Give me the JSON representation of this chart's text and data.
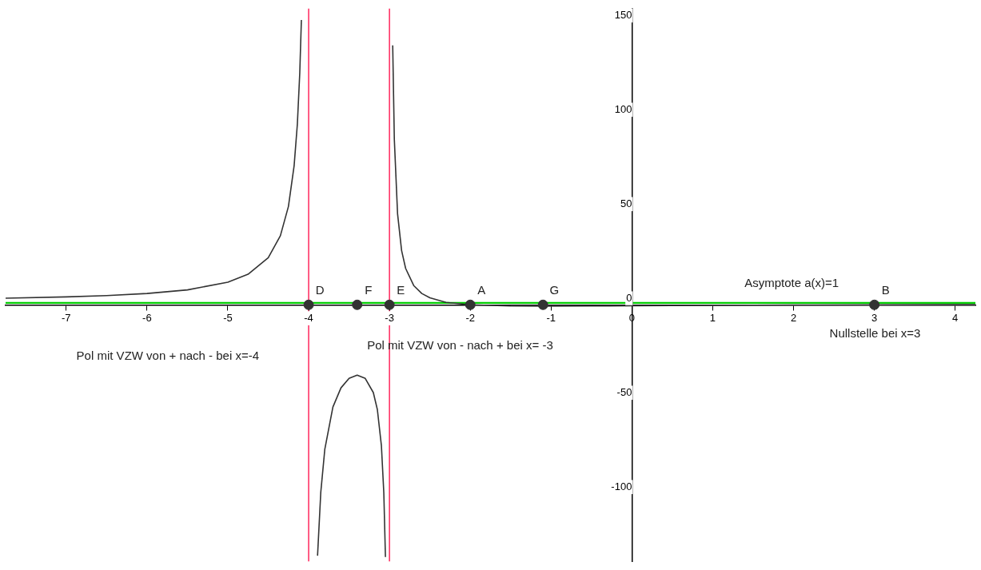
{
  "chart_data": {
    "type": "line",
    "xlim": [
      -7.75,
      4.25
    ],
    "ylim": [
      -136,
      157
    ],
    "xticks": [
      -7,
      -6,
      -5,
      -4,
      -3,
      -2,
      -1,
      0,
      1,
      2,
      3,
      4
    ],
    "yticks": [
      -100,
      -50,
      0,
      50,
      100,
      150
    ],
    "grid": false,
    "series": [
      {
        "color": "#333333",
        "marker": "none",
        "line_style": "solid",
        "x": [
          -7.75,
          -7,
          -6.5,
          -6,
          -5.5,
          -5,
          -4.75,
          -4.5,
          -4.35,
          -4.25,
          -4.18,
          -4.14,
          -4.11,
          -4.09,
          -4,
          -3.89,
          -3.85,
          -3.8,
          -3.7,
          -3.6,
          -3.5,
          -3.4,
          -3.3,
          -3.2,
          -3.15,
          -3.1,
          -3.07,
          -3.05,
          -3,
          -2.96,
          -2.94,
          -2.9,
          -2.85,
          -2.8,
          -2.7,
          -2.6,
          -2.5,
          -2.3,
          -2,
          -1.5,
          -1.1,
          -0.5,
          0,
          1,
          2,
          3,
          4,
          4.25
        ],
        "values": [
          3.5,
          4.2,
          4.9,
          6,
          7.9,
          12,
          16.2,
          25,
          36.6,
          52.2,
          73.7,
          95.7,
          122.9,
          151,
          null,
          -133,
          -99.4,
          -76.5,
          -54.2,
          -44,
          -39,
          -37.3,
          -39,
          -46.5,
          -55.5,
          -74.6,
          -99.8,
          -133.7,
          null,
          137.5,
          87.8,
          48.3,
          28.8,
          19.3,
          10.2,
          6,
          3.7,
          1.3,
          0,
          -0.6,
          -0.7,
          -0.6,
          -0.5,
          -0.3,
          -0.1,
          0,
          0.1,
          0.1
        ]
      },
      {
        "type": "scatter",
        "color": "#333333",
        "marker": "circle",
        "x": [
          -4,
          -3.4,
          -3,
          -2,
          -1.1,
          3
        ],
        "values": [
          0,
          0,
          0,
          0,
          0,
          0
        ]
      }
    ],
    "ref_lines": [
      {
        "axis": "y",
        "value": 1,
        "color": "#00cc00"
      },
      {
        "axis": "x",
        "value": -4,
        "color": "#ff3366"
      },
      {
        "axis": "x",
        "value": -3,
        "color": "#ff3366"
      }
    ],
    "annotations": [
      {
        "text": "D",
        "x": -4,
        "y": 0
      },
      {
        "text": "F",
        "x": -3.4,
        "y": 0
      },
      {
        "text": "E",
        "x": -3,
        "y": 0
      },
      {
        "text": "A",
        "x": -2,
        "y": 0
      },
      {
        "text": "G",
        "x": -1.1,
        "y": 0
      },
      {
        "text": "B",
        "x": 3,
        "y": 0
      },
      "Asymptote a(x)=1",
      "Nullstelle bei x=3",
      "Pol mit VZW von + nach - bei x=-4",
      "Pol mit VZW von - nach + bei x= -3"
    ]
  }
}
